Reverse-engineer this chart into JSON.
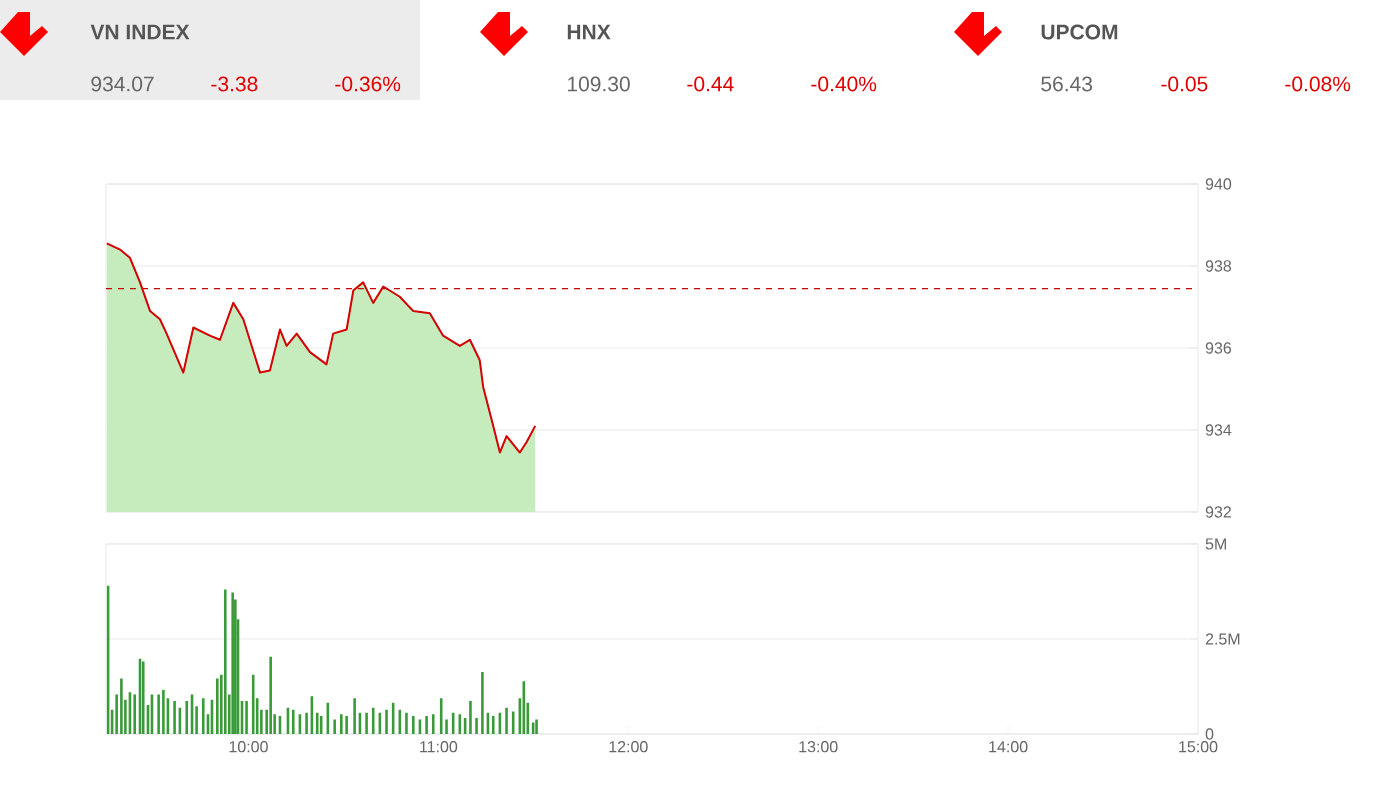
{
  "chart_data": [
    {
      "type": "other",
      "annotations": [
        "VN INDEX",
        "934.07",
        "-3.38",
        "-0.36%",
        "HNX",
        "109.30",
        "-0.44",
        "-0.40%",
        "UPCOM",
        "56.43",
        "-0.05",
        "-0.08%"
      ]
    },
    {
      "type": "line",
      "xlim": [
        9.25,
        15
      ],
      "ylim": [
        932,
        940
      ],
      "yticks": [
        932,
        934,
        936,
        938,
        940
      ],
      "tick_labels": "y",
      "grid": "y",
      "ref_lines": [
        {
          "axis": "y",
          "value": 937.45,
          "color": "#cc0000",
          "line_style": "dashed"
        }
      ],
      "series": [
        {
          "type": "area",
          "color": "#c6ecbe",
          "x": [
            9.254,
            9.324,
            9.376,
            9.429,
            9.482,
            9.534,
            9.569,
            9.657,
            9.71,
            9.797,
            9.85,
            9.92,
            9.973,
            10.061,
            10.113,
            10.166,
            10.201,
            10.254,
            10.324,
            10.411,
            10.446,
            10.517,
            10.552,
            10.604,
            10.657,
            10.71,
            10.797,
            10.868,
            10.955,
            11.025,
            11.113,
            11.166,
            11.218,
            11.236,
            11.289,
            11.324,
            11.359,
            11.429,
            11.464,
            11.51
          ],
          "values": [
            938.55,
            938.4,
            938.2,
            937.6,
            936.9,
            936.7,
            936.35,
            935.4,
            936.5,
            936.3,
            936.2,
            937.1,
            936.7,
            935.4,
            935.45,
            936.45,
            936.05,
            936.35,
            935.9,
            935.6,
            936.35,
            936.45,
            937.4,
            937.6,
            937.1,
            937.5,
            937.25,
            936.9,
            936.85,
            936.3,
            936.05,
            936.2,
            935.7,
            935.05,
            934.1,
            933.45,
            933.85,
            933.45,
            933.7,
            934.1
          ]
        },
        {
          "type": "line",
          "color": "#d40000",
          "x": [
            9.254,
            9.324,
            9.376,
            9.429,
            9.482,
            9.534,
            9.569,
            9.657,
            9.71,
            9.797,
            9.85,
            9.92,
            9.973,
            10.061,
            10.113,
            10.166,
            10.201,
            10.254,
            10.324,
            10.411,
            10.446,
            10.517,
            10.552,
            10.604,
            10.657,
            10.71,
            10.797,
            10.868,
            10.955,
            11.025,
            11.113,
            11.166,
            11.218,
            11.236,
            11.289,
            11.324,
            11.359,
            11.429,
            11.464,
            11.51
          ],
          "values": [
            938.55,
            938.4,
            938.2,
            937.6,
            936.9,
            936.7,
            936.35,
            935.4,
            936.5,
            936.3,
            936.2,
            937.1,
            936.7,
            935.4,
            935.45,
            936.45,
            936.05,
            936.35,
            935.9,
            935.6,
            936.35,
            936.45,
            937.4,
            937.6,
            937.1,
            937.5,
            937.25,
            936.9,
            936.85,
            936.3,
            936.05,
            936.2,
            935.7,
            935.05,
            934.1,
            933.45,
            933.85,
            933.45,
            933.7,
            934.1
          ]
        }
      ]
    },
    {
      "type": "bar",
      "xlim": [
        9.25,
        15
      ],
      "ylim": [
        0,
        5
      ],
      "yticks": [
        0,
        {
          "value": 2.5,
          "label": "2.5M"
        },
        {
          "value": 5,
          "label": "5M"
        }
      ],
      "xticks": [
        {
          "value": 10,
          "label": "10:00"
        },
        {
          "value": 11,
          "label": "11:00"
        },
        {
          "value": 12,
          "label": "12:00"
        },
        {
          "value": 13,
          "label": "13:00"
        },
        {
          "value": 14,
          "label": "14:00"
        },
        {
          "value": 15,
          "label": "15:00"
        }
      ],
      "grid": "y",
      "series": [
        {
          "color": "#3a9a3a",
          "x": [
            9.261,
            9.282,
            9.306,
            9.331,
            9.352,
            9.376,
            9.401,
            9.429,
            9.446,
            9.471,
            9.492,
            9.527,
            9.552,
            9.576,
            9.611,
            9.639,
            9.675,
            9.703,
            9.727,
            9.762,
            9.787,
            9.808,
            9.836,
            9.857,
            9.878,
            9.899,
            9.917,
            9.931,
            9.945,
            9.966,
            9.99,
            10.025,
            10.046,
            10.068,
            10.096,
            10.117,
            10.138,
            10.166,
            10.208,
            10.236,
            10.271,
            10.306,
            10.334,
            10.362,
            10.383,
            10.418,
            10.454,
            10.489,
            10.517,
            10.559,
            10.587,
            10.622,
            10.657,
            10.692,
            10.727,
            10.762,
            10.797,
            10.832,
            10.868,
            10.903,
            10.938,
            10.973,
            11.015,
            11.043,
            11.078,
            11.113,
            11.141,
            11.169,
            11.201,
            11.232,
            11.261,
            11.289,
            11.324,
            11.359,
            11.394,
            11.429,
            11.45,
            11.471,
            11.499,
            11.517
          ],
          "values": [
            3.9,
            0.64,
            1.04,
            1.46,
            0.9,
            1.1,
            1.04,
            1.98,
            1.91,
            0.76,
            1.04,
            1.04,
            1.16,
            0.94,
            0.87,
            0.69,
            0.87,
            1.04,
            0.73,
            0.94,
            0.52,
            0.9,
            1.46,
            1.56,
            3.8,
            1.04,
            3.72,
            3.54,
            3.02,
            0.87,
            0.87,
            1.56,
            0.94,
            0.64,
            0.64,
            2.03,
            0.52,
            0.47,
            0.69,
            0.64,
            0.52,
            0.56,
            0.99,
            0.56,
            0.47,
            0.82,
            0.38,
            0.52,
            0.47,
            0.94,
            0.56,
            0.56,
            0.69,
            0.56,
            0.64,
            0.82,
            0.64,
            0.56,
            0.47,
            0.38,
            0.47,
            0.52,
            0.94,
            0.38,
            0.56,
            0.52,
            0.42,
            0.87,
            0.42,
            1.63,
            0.56,
            0.47,
            0.56,
            0.69,
            0.59,
            0.94,
            1.39,
            0.82,
            0.3,
            0.38
          ]
        }
      ]
    }
  ]
}
